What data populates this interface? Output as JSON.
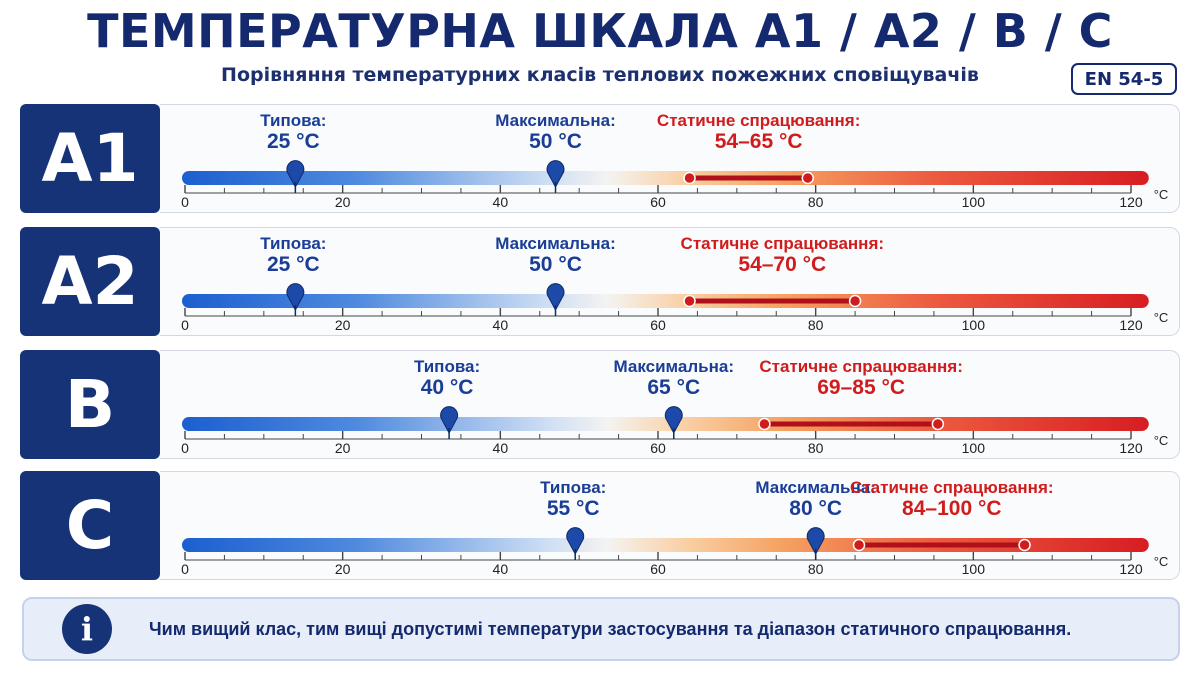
{
  "title": "ТЕМПЕРАТУРНА ШКАЛА A1 / A2 / B / C",
  "subtitle": "Порівняння температурних класів теплових пожежних сповіщувачів",
  "standard_badge": "EN 54-5",
  "scale": {
    "unit": "°C",
    "ticks": [
      "0",
      "20",
      "40",
      "60",
      "80",
      "100",
      "120"
    ],
    "min": 0,
    "max": 122
  },
  "typical_label": "Типова:",
  "max_label": "Максимальна:",
  "static_label": "Статичне спрацювання:",
  "colors": {
    "navy": "#173377",
    "blue_text": "#1a3d96",
    "red": "#d01c1c"
  },
  "rows": [
    {
      "cls": "A1",
      "typical": "25 °C",
      "maximum": "50 °C",
      "static": "54–65 °C",
      "typical_at": 14,
      "max_at": 47,
      "range": [
        64,
        79
      ]
    },
    {
      "cls": "A2",
      "typical": "25 °C",
      "maximum": "50 °C",
      "static": "54–70 °C",
      "typical_at": 14,
      "max_at": 47,
      "range": [
        64,
        85
      ]
    },
    {
      "cls": "B",
      "typical": "40 °C",
      "maximum": "65 °C",
      "static": "69–85 °C",
      "typical_at": 33.5,
      "max_at": 62,
      "range": [
        73.5,
        95.5
      ]
    },
    {
      "cls": "C",
      "typical": "55 °C",
      "maximum": "80 °C",
      "static": "84–100 °C",
      "typical_at": 49.5,
      "max_at": 80,
      "range": [
        85.5,
        106.5
      ]
    }
  ],
  "info_text": "Чим вищий клас, тим вищі допустимі температури застосування та діапазон статичного спрацювання."
}
